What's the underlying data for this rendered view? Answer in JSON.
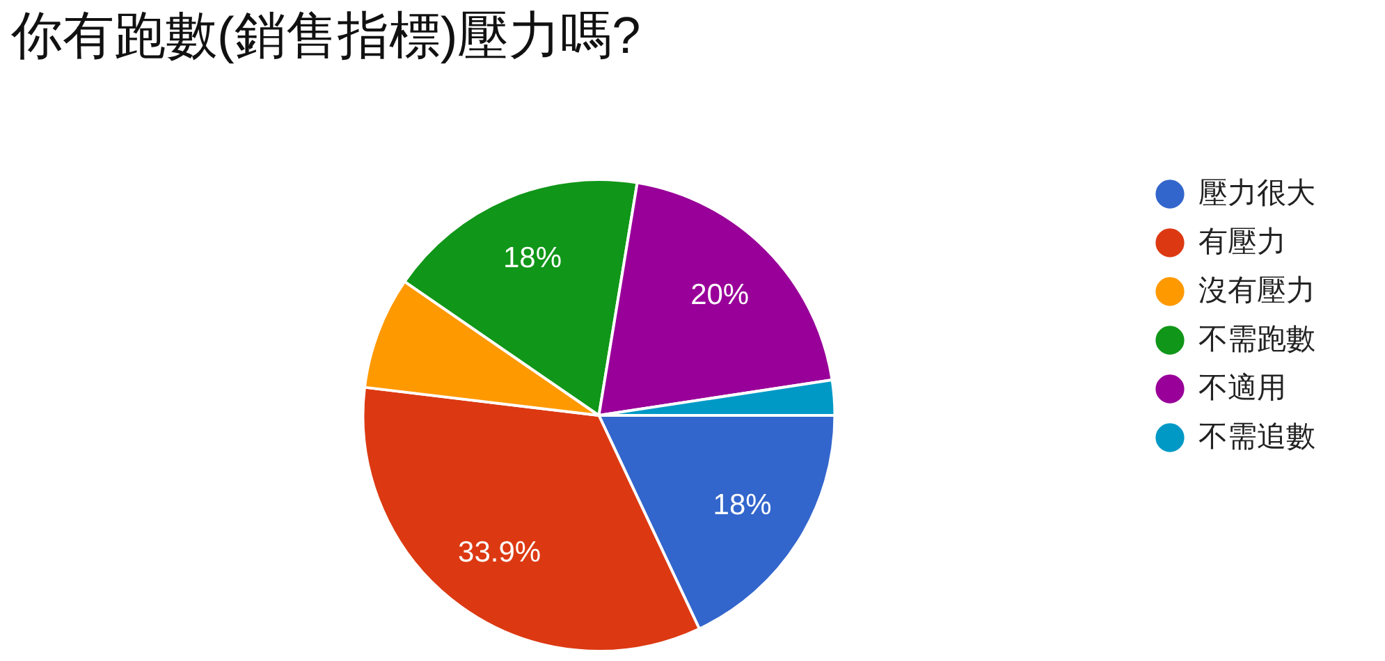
{
  "chart_data": {
    "type": "pie",
    "title": "你有跑數(銷售指標)壓力嗎?",
    "categories": [
      "壓力很大",
      "有壓力",
      "沒有壓力",
      "不需跑數",
      "不適用",
      "不需追數"
    ],
    "values": [
      18,
      33.9,
      7.7,
      18,
      20,
      2.4
    ],
    "colors": [
      "#3366cc",
      "#dc3912",
      "#ff9900",
      "#109618",
      "#990099",
      "#0099c6"
    ],
    "value_labels": [
      "18%",
      "33.9%",
      null,
      "18%",
      "20%",
      null
    ],
    "legend": "right"
  }
}
